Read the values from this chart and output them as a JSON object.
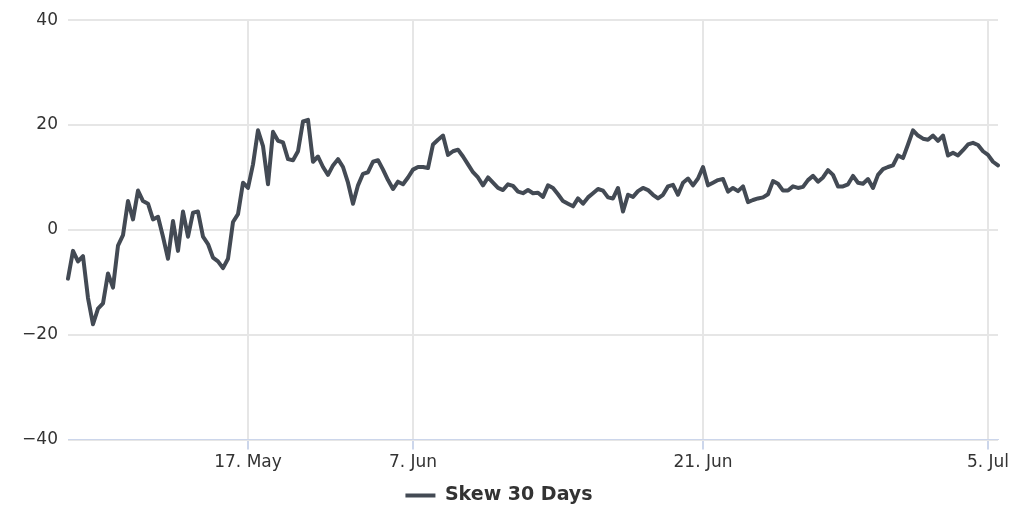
{
  "chart_data": {
    "type": "line",
    "categories": [
      null,
      null,
      null,
      null,
      null,
      null,
      null,
      null,
      null,
      null,
      null,
      null,
      null,
      null,
      null,
      null,
      null,
      null,
      null,
      null,
      null,
      null,
      null,
      null,
      null,
      null,
      null,
      null,
      null,
      null,
      null,
      null,
      null,
      null,
      null,
      null,
      "17. May",
      null,
      null,
      null,
      null,
      null,
      null,
      null,
      null,
      null,
      null,
      null,
      null,
      null,
      null,
      null,
      null,
      null,
      null,
      null,
      null,
      null,
      null,
      null,
      null,
      null,
      null,
      null,
      null,
      null,
      null,
      null,
      null,
      "7. Jun",
      null,
      null,
      null,
      null,
      null,
      null,
      null,
      null,
      null,
      null,
      null,
      null,
      null,
      null,
      null,
      null,
      null,
      null,
      null,
      null,
      null,
      null,
      null,
      null,
      null,
      null,
      null,
      null,
      null,
      null,
      null,
      null,
      null,
      null,
      null,
      null,
      null,
      null,
      null,
      null,
      null,
      null,
      null,
      null,
      null,
      null,
      null,
      null,
      null,
      null,
      null,
      null,
      null,
      null,
      null,
      null,
      null,
      "21. Jun",
      null,
      null,
      null,
      null,
      null,
      null,
      null,
      null,
      null,
      null,
      null,
      null,
      null,
      null,
      null,
      null,
      null,
      null,
      null,
      null,
      null,
      null,
      null,
      null,
      null,
      null,
      null,
      null,
      null,
      null,
      null,
      null,
      null,
      null,
      null,
      null,
      null,
      null,
      null,
      null,
      null,
      null,
      null,
      null,
      null,
      null,
      null,
      null,
      null,
      null,
      null,
      null,
      null,
      null,
      null,
      null,
      "5. Jul",
      null,
      null
    ],
    "series": [
      {
        "name": "Skew 30 Days",
        "color": "#434a54",
        "values": [
          -9.3,
          -4,
          -6,
          -5,
          -13,
          -18,
          -15,
          -14,
          -8.3,
          -11,
          -3,
          -1,
          5.5,
          2,
          7.5,
          5.5,
          5,
          2,
          2.5,
          -1.3,
          -5.5,
          1.7,
          -4,
          3.5,
          -1.3,
          3.3,
          3.5,
          -1.3,
          -2.7,
          -5.3,
          -6,
          -7.3,
          -5.5,
          1.5,
          3,
          9,
          8,
          12.5,
          19,
          16,
          8.7,
          18.7,
          17,
          16.7,
          13.5,
          13.3,
          15,
          20.7,
          21,
          13,
          14,
          12,
          10.5,
          12.3,
          13.5,
          12,
          9,
          5,
          8.5,
          10.7,
          11,
          13,
          13.3,
          11.5,
          9.5,
          7.8,
          9.2,
          8.7,
          10,
          11.5,
          12,
          12,
          11.8,
          16.3,
          17.2,
          18,
          14.3,
          15,
          15.3,
          14,
          12.5,
          11,
          10,
          8.5,
          10,
          9,
          8,
          7.6,
          8.7,
          8.4,
          7.3,
          7,
          7.6,
          7,
          7.1,
          6.3,
          8.5,
          8,
          6.8,
          5.5,
          5,
          4.5,
          6,
          5,
          6.2,
          7,
          7.8,
          7.5,
          6.2,
          6,
          8,
          3.5,
          6.7,
          6.3,
          7.4,
          8,
          7.6,
          6.7,
          6,
          6.7,
          8.3,
          8.6,
          6.7,
          9,
          9.8,
          8.5,
          9.8,
          12,
          8.5,
          9,
          9.5,
          9.7,
          7.3,
          8,
          7.4,
          8.3,
          5.3,
          5.7,
          6,
          6.2,
          6.8,
          9.3,
          8.8,
          7.5,
          7.5,
          8.3,
          8,
          8.2,
          9.5,
          10.3,
          9.2,
          10,
          11.4,
          10.5,
          8.3,
          8.3,
          8.7,
          10.3,
          9,
          8.8,
          9.7,
          8,
          10.5,
          11.6,
          12,
          12.3,
          14.2,
          13.7,
          16.3,
          19,
          18,
          17.4,
          17.2,
          18,
          17,
          18,
          14.2,
          14.7,
          14.2,
          15.2,
          16.3,
          16.6,
          16.2,
          15,
          14.3,
          13,
          12.3
        ]
      }
    ],
    "ylim": [
      -40,
      40
    ],
    "yticks": [
      40,
      20,
      0,
      {
        "value": -20,
        "label": "−20"
      },
      {
        "value": -40,
        "label": "−40"
      }
    ],
    "grid": true,
    "legend": "bottom",
    "marker": "none",
    "line_style": "solid"
  }
}
